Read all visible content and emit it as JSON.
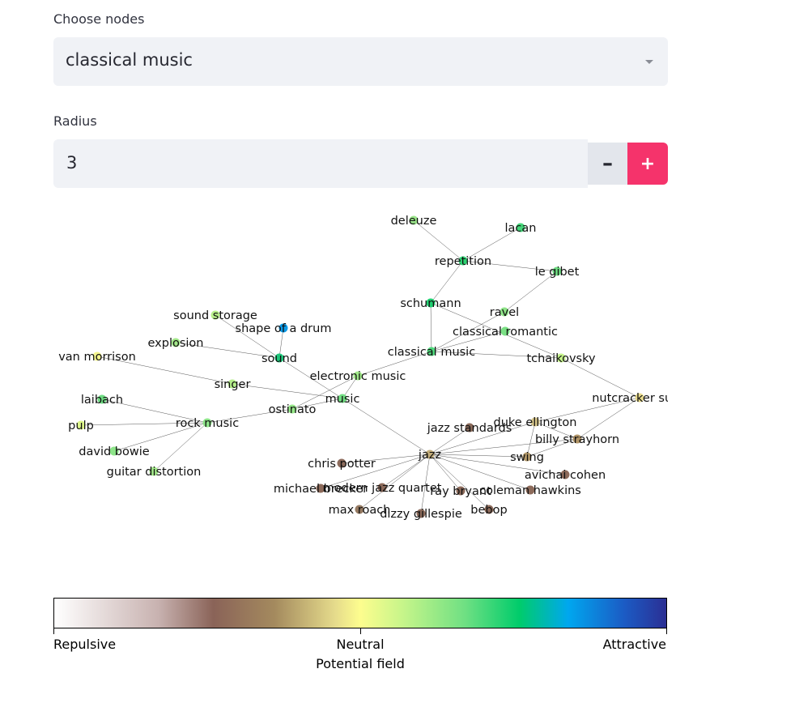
{
  "nodes_select": {
    "label": "Choose nodes",
    "value": "classical music"
  },
  "radius": {
    "label": "Radius",
    "value": "3",
    "minus": "–",
    "plus": "+"
  },
  "graph": {
    "nodes": [
      {
        "id": "deleuze",
        "label": "deleuze",
        "color": "#9ae58a"
      },
      {
        "id": "lacan",
        "label": "lacan",
        "color": "#45d77a"
      },
      {
        "id": "repetition",
        "label": "repetition",
        "color": "#2dd272"
      },
      {
        "id": "le_gibet",
        "label": "le gibet",
        "color": "#6edc82"
      },
      {
        "id": "schumann",
        "label": "schumann",
        "color": "#1fcf70"
      },
      {
        "id": "ravel",
        "label": "ravel",
        "color": "#8ee388"
      },
      {
        "id": "classical_romantic",
        "label": "classical romantic",
        "color": "#7ae084"
      },
      {
        "id": "classical_music",
        "label": "classical music",
        "color": "#4fd87c"
      },
      {
        "id": "tchaikovsky",
        "label": "tchaikovsky",
        "color": "#c4f28a"
      },
      {
        "id": "nutcracker_suite",
        "label": "nutcracker suite",
        "color": "#e9dc8e"
      },
      {
        "id": "sound_storage",
        "label": "sound storage",
        "color": "#b8ef8a"
      },
      {
        "id": "shape_of_a_drum",
        "label": "shape of a drum",
        "color": "#0b9be8"
      },
      {
        "id": "explosion",
        "label": "explosion",
        "color": "#a3e88a"
      },
      {
        "id": "sound",
        "label": "sound",
        "color": "#1dc77a"
      },
      {
        "id": "van_morrison",
        "label": "van morrison",
        "color": "#f4f58c"
      },
      {
        "id": "singer",
        "label": "singer",
        "color": "#b4ee8a"
      },
      {
        "id": "electronic_music",
        "label": "electronic music",
        "color": "#a1e98a"
      },
      {
        "id": "music",
        "label": "music",
        "color": "#72de83"
      },
      {
        "id": "ostinato",
        "label": "ostinato",
        "color": "#95e688"
      },
      {
        "id": "laibach",
        "label": "laibach",
        "color": "#6edc82"
      },
      {
        "id": "rock_music",
        "label": "rock music",
        "color": "#8de489"
      },
      {
        "id": "pulp",
        "label": "pulp",
        "color": "#dcf58a"
      },
      {
        "id": "david_bowie",
        "label": "david bowie",
        "color": "#8de489"
      },
      {
        "id": "guitar_distortion",
        "label": "guitar distortion",
        "color": "#a3e98a"
      },
      {
        "id": "jazz_standards",
        "label": "jazz standards",
        "color": "#8a6a5a"
      },
      {
        "id": "duke_ellington",
        "label": "duke ellington",
        "color": "#d7c68a"
      },
      {
        "id": "billy_strayhorn",
        "label": "billy strayhorn",
        "color": "#b09467"
      },
      {
        "id": "jazz",
        "label": "jazz",
        "color": "#c3ad7a"
      },
      {
        "id": "swing",
        "label": "swing",
        "color": "#b59a6a"
      },
      {
        "id": "chris_potter",
        "label": "chris potter",
        "color": "#8c6b5c"
      },
      {
        "id": "avichai_cohen",
        "label": "avichai cohen",
        "color": "#8d6a5a"
      },
      {
        "id": "michael_brecker",
        "label": "michael brecker",
        "color": "#8c6a5a"
      },
      {
        "id": "modern_jazz_quartet",
        "label": "modern jazz quartet",
        "color": "#8c6a5a"
      },
      {
        "id": "ray_bryant",
        "label": "ray bryant",
        "color": "#8c6a5a"
      },
      {
        "id": "coleman_hawkins",
        "label": "coleman hawkins",
        "color": "#8c6a5a"
      },
      {
        "id": "max_roach",
        "label": "max roach",
        "color": "#957a62"
      },
      {
        "id": "dizzy_gillespie",
        "label": "dizzy gillespie",
        "color": "#8c6a5a"
      },
      {
        "id": "bebop",
        "label": "bebop",
        "color": "#8c6a5a"
      }
    ],
    "edges": [
      [
        "deleuze",
        "repetition"
      ],
      [
        "lacan",
        "repetition"
      ],
      [
        "repetition",
        "le_gibet"
      ],
      [
        "repetition",
        "schumann"
      ],
      [
        "schumann",
        "classical_music"
      ],
      [
        "schumann",
        "tchaikovsky"
      ],
      [
        "le_gibet",
        "ravel"
      ],
      [
        "ravel",
        "classical_music"
      ],
      [
        "classical_romantic",
        "classical_music"
      ],
      [
        "classical_music",
        "tchaikovsky"
      ],
      [
        "classical_music",
        "electronic_music"
      ],
      [
        "tchaikovsky",
        "nutcracker_suite"
      ],
      [
        "sound_storage",
        "sound"
      ],
      [
        "shape_of_a_drum",
        "sound"
      ],
      [
        "explosion",
        "sound"
      ],
      [
        "sound",
        "music"
      ],
      [
        "van_morrison",
        "singer"
      ],
      [
        "singer",
        "music"
      ],
      [
        "electronic_music",
        "music"
      ],
      [
        "electronic_music",
        "ostinato"
      ],
      [
        "music",
        "ostinato"
      ],
      [
        "ostinato",
        "rock_music"
      ],
      [
        "music",
        "jazz"
      ],
      [
        "laibach",
        "rock_music"
      ],
      [
        "pulp",
        "rock_music"
      ],
      [
        "david_bowie",
        "rock_music"
      ],
      [
        "guitar_distortion",
        "rock_music"
      ],
      [
        "jazz",
        "jazz_standards"
      ],
      [
        "jazz",
        "duke_ellington"
      ],
      [
        "jazz",
        "billy_strayhorn"
      ],
      [
        "jazz",
        "swing"
      ],
      [
        "jazz",
        "chris_potter"
      ],
      [
        "jazz",
        "avichai_cohen"
      ],
      [
        "jazz",
        "michael_brecker"
      ],
      [
        "jazz",
        "modern_jazz_quartet"
      ],
      [
        "jazz",
        "ray_bryant"
      ],
      [
        "jazz",
        "coleman_hawkins"
      ],
      [
        "jazz",
        "max_roach"
      ],
      [
        "jazz",
        "dizzy_gillespie"
      ],
      [
        "jazz",
        "bebop"
      ],
      [
        "nutcracker_suite",
        "duke_ellington"
      ],
      [
        "nutcracker_suite",
        "billy_strayhorn"
      ],
      [
        "duke_ellington",
        "billy_strayhorn"
      ],
      [
        "duke_ellington",
        "swing"
      ],
      [
        "swing",
        "billy_strayhorn"
      ]
    ]
  },
  "colorbar": {
    "left_label": "Repulsive",
    "mid_label": "Neutral",
    "right_label": "Attractive",
    "title": "Potential field"
  }
}
